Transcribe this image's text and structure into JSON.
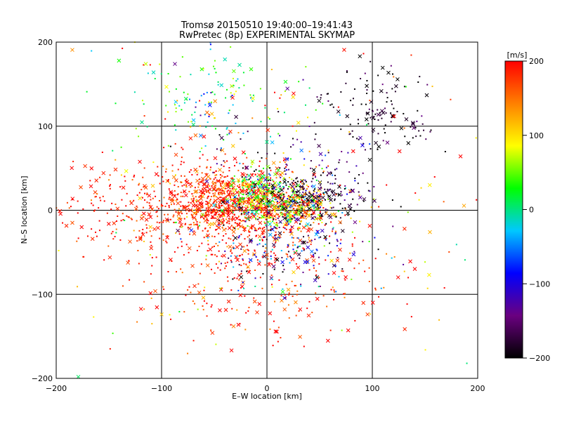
{
  "chart_data": {
    "type": "scatter",
    "title": "Tromsø 20150510 19:40:00–19:41:43",
    "subtitle": "RwPretec (8p) EXPERIMENTAL SKYMAP",
    "xlabel": "E–W location [km]",
    "ylabel": "N–S location [km]",
    "xlim": [
      -200,
      200
    ],
    "ylim": [
      -200,
      200
    ],
    "xticks": [
      -200,
      -100,
      0,
      100,
      200
    ],
    "yticks": [
      -200,
      -100,
      0,
      100,
      200
    ],
    "xtick_labels": [
      "−200",
      "−100",
      "0",
      "100",
      "200"
    ],
    "ytick_labels": [
      "−200",
      "−100",
      "0",
      "100",
      "200"
    ],
    "grid": true,
    "marker_types": [
      "dot",
      "cross"
    ],
    "colorbar": {
      "label": "[m/s]",
      "min": -200,
      "max": 200,
      "ticks": [
        200,
        100,
        0,
        -100,
        -200
      ],
      "tick_labels": [
        "200",
        "100",
        "0",
        "−100",
        "−200"
      ],
      "colors": [
        "#000000",
        "#6a0080",
        "#0000ff",
        "#00c8ff",
        "#00ff00",
        "#ffff00",
        "#ff8000",
        "#ff0000"
      ]
    },
    "clusters": [
      {
        "x": -40,
        "y": 10,
        "sx": 35,
        "sy": 22,
        "n": 900,
        "v": 180,
        "vs": 40
      },
      {
        "x": 25,
        "y": 2,
        "sx": 20,
        "sy": 14,
        "n": 350,
        "v": 120,
        "vs": 80
      },
      {
        "x": -5,
        "y": 20,
        "sx": 15,
        "sy": 15,
        "n": 200,
        "v": 40,
        "vs": 40
      },
      {
        "x": 40,
        "y": 15,
        "sx": 25,
        "sy": 15,
        "n": 180,
        "v": -180,
        "vs": 30
      },
      {
        "x": 110,
        "y": 120,
        "sx": 30,
        "sy": 22,
        "n": 130,
        "v": -190,
        "vs": 20
      },
      {
        "x": -50,
        "y": 130,
        "sx": 40,
        "sy": 30,
        "n": 150,
        "v": 10,
        "vs": 60
      },
      {
        "x": 0,
        "y": -70,
        "sx": 60,
        "sy": 40,
        "n": 300,
        "v": 190,
        "vs": 30
      },
      {
        "x": -110,
        "y": 0,
        "sx": 50,
        "sy": 30,
        "n": 220,
        "v": 190,
        "vs": 20
      },
      {
        "x": 20,
        "y": -40,
        "sx": 40,
        "sy": 30,
        "n": 200,
        "v": -120,
        "vs": 80
      },
      {
        "x": 0,
        "y": 0,
        "sx": 120,
        "sy": 110,
        "n": 260,
        "v": 150,
        "vs": 80
      },
      {
        "x": 30,
        "y": 40,
        "sx": 40,
        "sy": 30,
        "n": 150,
        "v": -150,
        "vs": 60
      }
    ]
  }
}
